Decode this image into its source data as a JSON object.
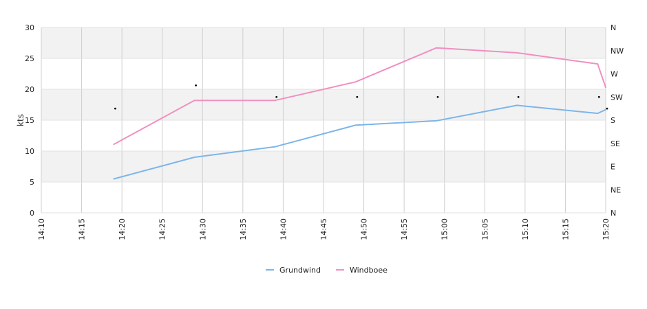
{
  "chart_data": {
    "type": "line",
    "ylabel": "kts",
    "ylim": [
      0,
      30
    ],
    "yticks": [
      "0",
      "5",
      "10",
      "15",
      "20",
      "25",
      "30"
    ],
    "y2ticks": [
      "N",
      "NE",
      "E",
      "SE",
      "S",
      "SW",
      "W",
      "NW",
      "N"
    ],
    "xticks": [
      "14:10",
      "14:15",
      "14:20",
      "14:25",
      "14:30",
      "14:35",
      "14:40",
      "14:45",
      "14:50",
      "14:55",
      "15:00",
      "15:05",
      "15:10",
      "15:15",
      "15:20"
    ],
    "xlim": [
      "14:10",
      "15:20"
    ],
    "grid": true,
    "legend_position": "bottom",
    "series": [
      {
        "name": "Grundwind",
        "color": "#7cb5ec",
        "x": [
          "14:19",
          "14:29",
          "14:39",
          "14:49",
          "14:59",
          "15:09",
          "15:19",
          "15:20"
        ],
        "values": [
          5.5,
          9.0,
          10.7,
          14.2,
          14.9,
          17.4,
          16.1,
          16.7
        ]
      },
      {
        "name": "Windboee",
        "color": "#f18fc0",
        "x": [
          "14:19",
          "14:29",
          "14:39",
          "14:49",
          "14:59",
          "15:09",
          "15:19",
          "15:20"
        ],
        "values": [
          11.1,
          18.2,
          18.2,
          21.2,
          26.7,
          25.9,
          24.1,
          20.3
        ]
      }
    ],
    "direction_markers": {
      "x": [
        "14:19",
        "14:29",
        "14:39",
        "14:49",
        "14:59",
        "15:09",
        "15:19",
        "15:20"
      ],
      "values": [
        "SSW",
        "WSW",
        "SW",
        "SW",
        "SW",
        "SW",
        "SW",
        "SSW"
      ]
    }
  }
}
